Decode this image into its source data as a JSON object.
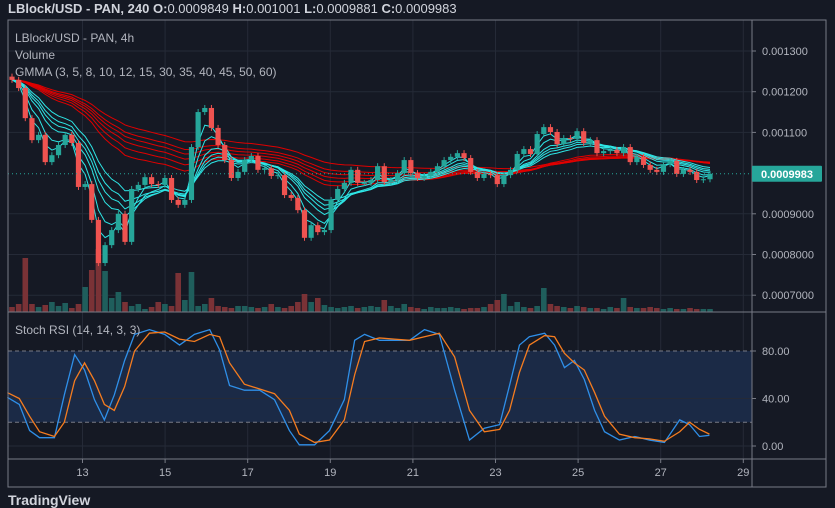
{
  "header": {
    "symbol": "LBlock/USD - PAN, 240",
    "o_label": "O:",
    "o": "0.0009849",
    "h_label": "H:",
    "h": "0.001001",
    "l_label": "L:",
    "l": "0.0009881",
    "c_label": "C:",
    "c": "0.0009983"
  },
  "legend": {
    "title": "LBlock/USD - PAN, 4h",
    "volume": "Volume",
    "gmma": "GMMA (3, 5, 8, 10, 12, 15, 30, 35, 40, 45, 50, 60)",
    "stoch": "Stoch RSI (14, 14, 3, 3)"
  },
  "brand": "TradingView",
  "colors": {
    "background": "#151924",
    "up": "#26a69a",
    "down": "#ef5350",
    "volume_up": "#1f5e5c",
    "volume_down": "#7a3236",
    "gmma_short": "#2ee6e6",
    "gmma_long": "#e00000",
    "stoch_k": "#2f8fe8",
    "stoch_d": "#f57c1f",
    "stoch_band": "#1b2a46",
    "last_price_tag": "#26a69a"
  },
  "chart_data": [
    {
      "type": "candlestick",
      "interval": "4h",
      "price_axis": {
        "ticks": [
          "0.001300",
          "0.001200",
          "0.001100",
          "0.0009000",
          "0.0008000",
          "0.0007000"
        ],
        "tick_values": [
          0.0013,
          0.0012,
          0.0011,
          0.0009,
          0.0008,
          0.0007
        ],
        "last_price": "0.0009983"
      },
      "time_axis": {
        "ticks": [
          "13",
          "15",
          "17",
          "19",
          "21",
          "23",
          "25",
          "27",
          "29"
        ]
      },
      "grid": true,
      "closes": [
        0.001229,
        0.001209,
        0.001135,
        0.001081,
        0.001094,
        0.001027,
        0.001044,
        0.001069,
        0.001094,
        0.001074,
        0.000966,
        0.000973,
        0.000885,
        0.000779,
        0.000823,
        0.00086,
        0.0009,
        0.000831,
        0.000961,
        0.000971,
        0.00099,
        0.000973,
        0.000971,
        0.000988,
        0.000934,
        0.000922,
        0.000934,
        0.001064,
        0.00115,
        0.00116,
        0.001111,
        0.001069,
        0.001032,
        0.000988,
        0.001003,
        0.001032,
        0.001042,
        0.001008,
        0.001012,
        0.000993,
        0.000995,
        0.000946,
        0.000939,
        0.000909,
        0.000841,
        0.000872,
        0.000855,
        0.00086,
        0.000934,
        0.000961,
        0.000976,
        0.001008,
        0.000976,
        0.000976,
        0.000983,
        0.001017,
        0.000978,
        0.000983,
        0.001,
        0.001032,
        0.001,
        0.000988,
        0.000993,
        0.001003,
        0.001017,
        0.001032,
        0.00104,
        0.001049,
        0.001037,
        0.001003,
        0.000988,
        0.000998,
        0.000995,
        0.000973,
        0.000995,
        0.001008,
        0.001047,
        0.001059,
        0.001047,
        0.001096,
        0.001113,
        0.001101,
        0.001071,
        0.001086,
        0.001084,
        0.001103,
        0.001074,
        0.001081,
        0.001049,
        0.001054,
        0.001057,
        0.001049,
        0.001064,
        0.001027,
        0.00104,
        0.00102,
        0.001008,
        0.001003,
        0.001022,
        0.00103,
        0.000998,
        0.001008,
        0.001003,
        0.000983,
        0.0009849,
        0.0009983
      ],
      "volume_relative": [
        5,
        8,
        54,
        8,
        5,
        7,
        10,
        6,
        9,
        4,
        8,
        25,
        42,
        63,
        41,
        14,
        20,
        10,
        6,
        8,
        3,
        5,
        10,
        8,
        6,
        39,
        12,
        40,
        6,
        8,
        14,
        6,
        5,
        4,
        6,
        6,
        5,
        4,
        5,
        8,
        5,
        4,
        6,
        10,
        18,
        10,
        14,
        7,
        5,
        4,
        5,
        6,
        4,
        5,
        6,
        5,
        12,
        6,
        4,
        8,
        5,
        4,
        3,
        5,
        4,
        4,
        5,
        4,
        3,
        4,
        4,
        5,
        8,
        12,
        18,
        6,
        10,
        5,
        4,
        6,
        24,
        8,
        6,
        5,
        4,
        6,
        5,
        4,
        4,
        3,
        5,
        4,
        14,
        5,
        4,
        4,
        5,
        4,
        3,
        4,
        3,
        3,
        4,
        3,
        3,
        3
      ],
      "gmma_periods": {
        "short": [
          3,
          5,
          8,
          10,
          12,
          15
        ],
        "long": [
          30,
          35,
          40,
          45,
          50,
          60
        ]
      }
    },
    {
      "type": "line",
      "title": "Stoch RSI (14, 14, 3, 3)",
      "y_ticks": [
        "80.00",
        "40.00",
        "0.00"
      ],
      "ylim": [
        0,
        100
      ],
      "band": [
        20,
        80
      ],
      "x_days": [
        11.18,
        11.47,
        11.72,
        11.96,
        12.32,
        12.56,
        12.81,
        13.05,
        13.29,
        13.53,
        13.77,
        14.02,
        14.26,
        14.62,
        14.99,
        15.35,
        15.71,
        16.08,
        16.32,
        16.56,
        16.92,
        17.29,
        17.65,
        18.01,
        18.25,
        18.62,
        18.98,
        19.34,
        19.59,
        19.83,
        20.19,
        20.55,
        20.92,
        21.28,
        21.64,
        22.01,
        22.37,
        22.73,
        23.1,
        23.34,
        23.58,
        23.82,
        24.19,
        24.43,
        24.67,
        24.91,
        25.15,
        25.4,
        25.64,
        26.0,
        26.37,
        26.73,
        27.09,
        27.46,
        27.7,
        27.94,
        28.18
      ],
      "k": [
        41,
        35,
        13,
        7,
        7,
        43,
        77,
        64,
        39,
        22,
        43,
        72,
        94,
        98,
        94,
        85,
        94,
        98,
        81,
        51,
        47,
        47,
        39,
        13,
        1,
        1,
        13,
        39,
        89,
        94,
        89,
        89,
        89,
        98,
        94,
        47,
        5,
        15,
        18,
        51,
        85,
        92,
        95,
        85,
        66,
        72,
        56,
        30,
        12,
        5,
        8,
        5,
        3,
        22,
        18,
        8,
        9
      ],
      "d": [
        45,
        40,
        25,
        12,
        8,
        20,
        55,
        70,
        55,
        35,
        30,
        50,
        80,
        95,
        96,
        90,
        88,
        94,
        92,
        70,
        52,
        48,
        44,
        30,
        10,
        3,
        5,
        22,
        60,
        88,
        91,
        90,
        89,
        92,
        95,
        75,
        30,
        12,
        14,
        30,
        62,
        85,
        93,
        92,
        78,
        70,
        64,
        45,
        25,
        10,
        7,
        6,
        4,
        12,
        20,
        14,
        10
      ]
    }
  ]
}
